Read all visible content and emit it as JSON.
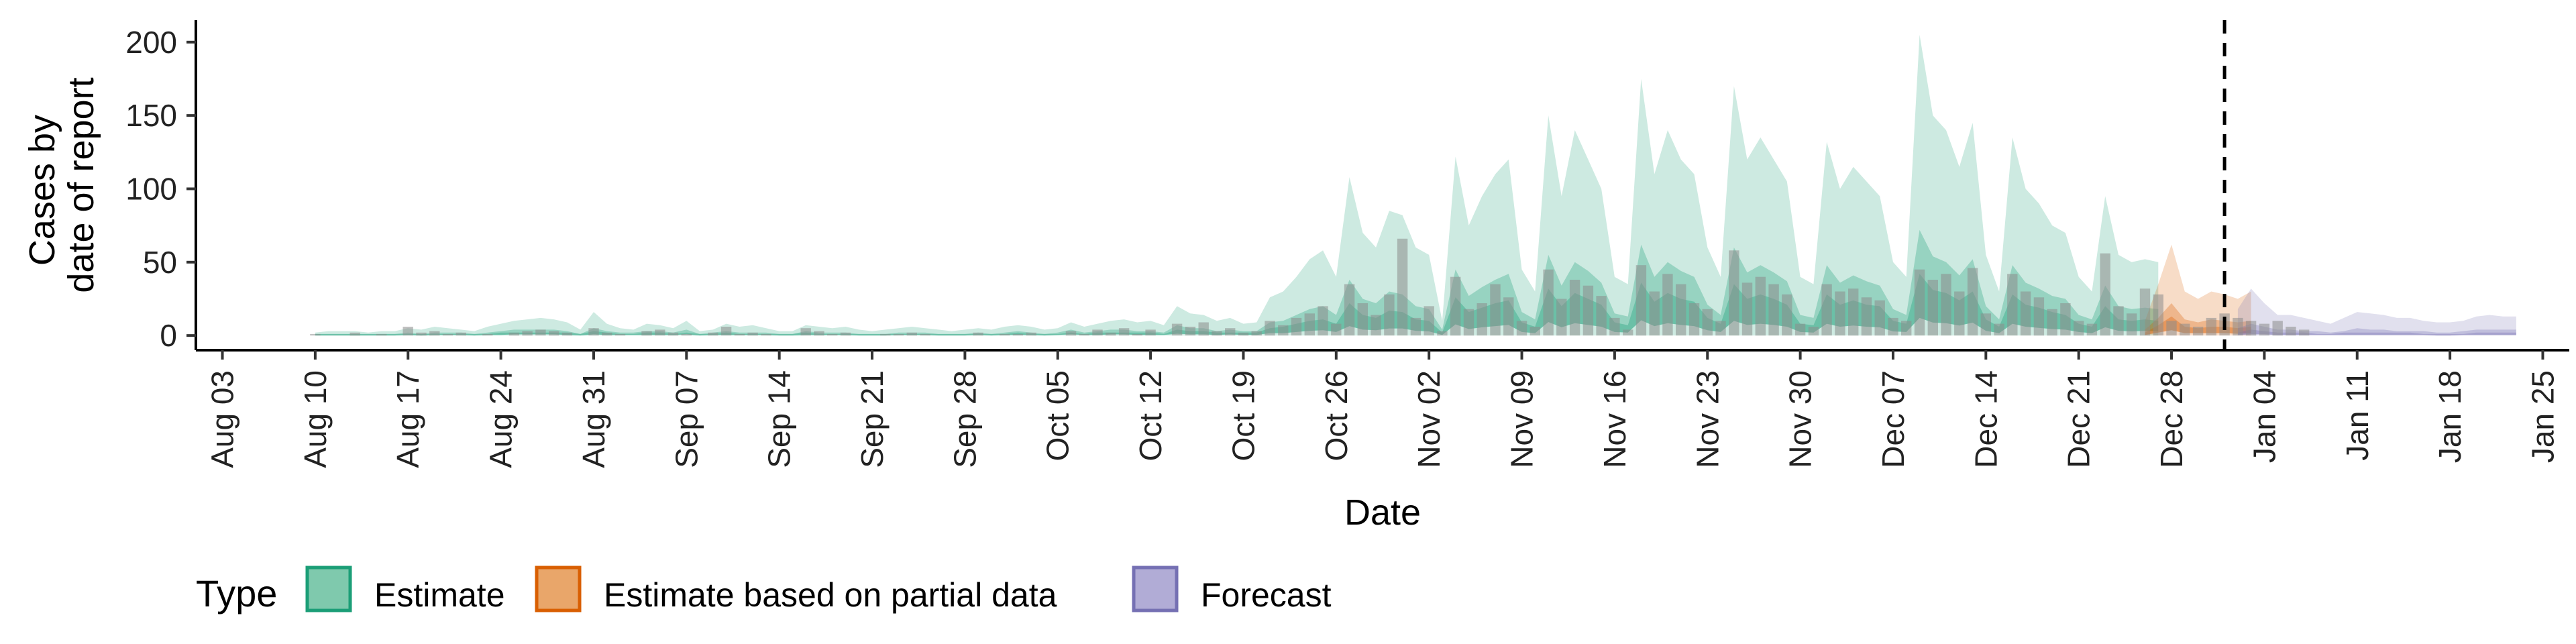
{
  "chart_data": {
    "type": "area",
    "xlabel": "Date",
    "ylabel_lines": [
      "Cases by",
      "date of report"
    ],
    "x_tick_labels": [
      "Aug 03",
      "Aug 10",
      "Aug 17",
      "Aug 24",
      "Aug 31",
      "Sep 07",
      "Sep 14",
      "Sep 21",
      "Sep 28",
      "Oct 05",
      "Oct 12",
      "Oct 19",
      "Oct 26",
      "Nov 02",
      "Nov 09",
      "Nov 16",
      "Nov 23",
      "Nov 30",
      "Dec 07",
      "Dec 14",
      "Dec 21",
      "Dec 28",
      "Jan 04",
      "Jan 11",
      "Jan 18",
      "Jan 25"
    ],
    "x_tick_days": [
      0,
      7,
      14,
      21,
      28,
      35,
      42,
      49,
      56,
      63,
      70,
      77,
      84,
      91,
      98,
      105,
      112,
      119,
      126,
      133,
      140,
      147,
      154,
      161,
      168,
      175
    ],
    "y_ticks": [
      0,
      50,
      100,
      150,
      200
    ],
    "ylim": [
      -10,
      215
    ],
    "xlim_days": [
      -2,
      177
    ],
    "forecast_divider_day": 151,
    "legend": {
      "title": "Type",
      "position": "bottom-left",
      "items": [
        {
          "label": "Estimate",
          "fill": "#7fc9ad",
          "stroke": "#1b9e77"
        },
        {
          "label": "Estimate based on partial data",
          "fill": "#e9a66a",
          "stroke": "#d95f02"
        },
        {
          "label": "Forecast",
          "fill": "#b1acd6",
          "stroke": "#7570b3"
        }
      ]
    },
    "series": [
      {
        "name": "Estimate",
        "color": "#1b9e77",
        "start_day": 7,
        "upper90": [
          2,
          3,
          3,
          3,
          2,
          3,
          3,
          5,
          4,
          6,
          5,
          4,
          3,
          6,
          8,
          10,
          11,
          12,
          11,
          9,
          4,
          16,
          8,
          5,
          4,
          8,
          7,
          5,
          10,
          3,
          4,
          8,
          6,
          7,
          5,
          3,
          3,
          7,
          6,
          5,
          6,
          4,
          3,
          4,
          5,
          6,
          5,
          4,
          3,
          4,
          5,
          4,
          6,
          7,
          6,
          4,
          5,
          9,
          6,
          8,
          10,
          11,
          9,
          10,
          7,
          20,
          15,
          14,
          10,
          12,
          8,
          9,
          26,
          30,
          40,
          52,
          58,
          40,
          108,
          70,
          60,
          85,
          82,
          60,
          55,
          10,
          122,
          75,
          95,
          110,
          120,
          45,
          30,
          150,
          95,
          140,
          120,
          100,
          40,
          35,
          175,
          110,
          140,
          120,
          110,
          60,
          40,
          170,
          120,
          135,
          120,
          105,
          40,
          35,
          132,
          100,
          115,
          105,
          95,
          50,
          40,
          205,
          150,
          140,
          115,
          145,
          55,
          30,
          135,
          100,
          90,
          75,
          70,
          40,
          30,
          95,
          55,
          50,
          52,
          50
        ],
        "upper50": [
          1,
          1,
          1,
          1,
          1,
          1,
          1,
          2,
          1,
          2,
          2,
          2,
          1,
          2,
          3,
          4,
          4,
          4,
          4,
          3,
          1,
          5,
          3,
          2,
          2,
          3,
          3,
          2,
          4,
          1,
          2,
          3,
          2,
          2,
          2,
          1,
          1,
          3,
          2,
          2,
          2,
          1,
          1,
          1,
          2,
          2,
          2,
          1,
          1,
          1,
          2,
          1,
          2,
          3,
          2,
          1,
          2,
          4,
          2,
          3,
          4,
          4,
          3,
          3,
          2,
          7,
          5,
          5,
          3,
          4,
          3,
          3,
          9,
          10,
          14,
          18,
          20,
          14,
          38,
          25,
          22,
          30,
          28,
          20,
          18,
          4,
          45,
          27,
          33,
          38,
          42,
          16,
          11,
          55,
          34,
          50,
          44,
          36,
          15,
          13,
          62,
          40,
          50,
          44,
          40,
          21,
          14,
          60,
          43,
          48,
          43,
          37,
          14,
          12,
          48,
          36,
          41,
          37,
          34,
          18,
          14,
          72,
          54,
          50,
          41,
          52,
          20,
          11,
          48,
          36,
          32,
          27,
          25,
          14,
          11,
          34,
          20,
          18,
          19,
          18
        ],
        "upper20": [
          1,
          1,
          1,
          1,
          1,
          1,
          1,
          1,
          1,
          1,
          1,
          1,
          1,
          1,
          2,
          2,
          2,
          2,
          2,
          2,
          1,
          3,
          2,
          1,
          1,
          2,
          2,
          1,
          2,
          1,
          1,
          2,
          1,
          1,
          1,
          1,
          1,
          2,
          1,
          1,
          1,
          1,
          1,
          1,
          1,
          1,
          1,
          1,
          1,
          1,
          1,
          1,
          1,
          2,
          1,
          1,
          1,
          2,
          1,
          2,
          2,
          2,
          2,
          2,
          1,
          4,
          3,
          3,
          2,
          2,
          2,
          2,
          5,
          6,
          8,
          10,
          11,
          8,
          22,
          14,
          12,
          17,
          16,
          11,
          10,
          2,
          26,
          16,
          19,
          22,
          24,
          9,
          6,
          32,
          20,
          29,
          25,
          21,
          9,
          7,
          36,
          23,
          29,
          25,
          23,
          12,
          8,
          35,
          25,
          28,
          25,
          21,
          8,
          7,
          28,
          21,
          24,
          21,
          20,
          10,
          8,
          42,
          31,
          29,
          24,
          30,
          11,
          6,
          28,
          21,
          19,
          16,
          14,
          8,
          6,
          20,
          11,
          10,
          11,
          10
        ],
        "median": [
          0,
          0,
          0,
          0,
          0,
          0,
          0,
          1,
          0,
          1,
          1,
          1,
          0,
          1,
          1,
          2,
          2,
          2,
          2,
          1,
          0,
          2,
          1,
          1,
          1,
          1,
          1,
          1,
          2,
          0,
          1,
          1,
          1,
          1,
          1,
          0,
          0,
          1,
          1,
          1,
          1,
          0,
          0,
          0,
          1,
          1,
          1,
          0,
          0,
          0,
          1,
          0,
          1,
          1,
          1,
          0,
          1,
          2,
          1,
          1,
          2,
          2,
          1,
          1,
          1,
          3,
          2,
          2,
          1,
          2,
          1,
          1,
          4,
          4,
          6,
          8,
          9,
          6,
          16,
          10,
          9,
          12,
          12,
          8,
          7,
          1,
          19,
          11,
          14,
          16,
          18,
          6,
          4,
          23,
          14,
          21,
          18,
          15,
          6,
          5,
          26,
          16,
          21,
          18,
          16,
          9,
          6,
          25,
          18,
          20,
          18,
          15,
          6,
          5,
          20,
          15,
          17,
          15,
          14,
          7,
          6,
          30,
          22,
          21,
          17,
          22,
          8,
          4,
          20,
          15,
          13,
          11,
          10,
          6,
          4,
          14,
          8,
          7,
          8,
          7
        ]
      },
      {
        "name": "Estimate based on partial data",
        "color": "#d95f02",
        "start_day": 145,
        "upper90": [
          10,
          35,
          62,
          30,
          25,
          30,
          28,
          25,
          30
        ],
        "upper50": [
          4,
          12,
          22,
          11,
          9,
          11,
          10,
          9,
          10
        ],
        "upper20": [
          2,
          7,
          13,
          6,
          5,
          6,
          6,
          5,
          6
        ],
        "median": [
          1,
          5,
          9,
          4,
          4,
          4,
          4,
          3,
          4
        ]
      },
      {
        "name": "Forecast",
        "color": "#7570b3",
        "start_day": 152,
        "upper90": [
          18,
          32,
          22,
          14,
          14,
          12,
          10,
          8,
          12,
          16,
          15,
          14,
          12,
          12,
          10,
          9,
          9,
          10,
          13,
          14,
          13,
          13
        ],
        "upper50": [
          5,
          8,
          6,
          4,
          4,
          3,
          3,
          2,
          3,
          5,
          4,
          4,
          3,
          3,
          3,
          2,
          2,
          3,
          4,
          4,
          4,
          4
        ],
        "upper20": [
          2,
          4,
          3,
          2,
          2,
          2,
          1,
          1,
          2,
          2,
          2,
          2,
          2,
          2,
          1,
          1,
          1,
          1,
          2,
          2,
          2,
          2
        ],
        "median": [
          1,
          2,
          2,
          1,
          1,
          1,
          1,
          1,
          1,
          1,
          1,
          1,
          1,
          1,
          1,
          0,
          0,
          1,
          1,
          1,
          1,
          1
        ]
      }
    ],
    "reported_cases": {
      "start_day": 7,
      "values": [
        1,
        0,
        0,
        2,
        0,
        1,
        0,
        6,
        2,
        3,
        1,
        2,
        0,
        1,
        0,
        2,
        3,
        4,
        3,
        2,
        0,
        5,
        2,
        1,
        0,
        3,
        4,
        2,
        1,
        0,
        2,
        6,
        1,
        2,
        1,
        0,
        0,
        5,
        3,
        1,
        2,
        0,
        0,
        1,
        1,
        2,
        1,
        0,
        0,
        0,
        2,
        0,
        1,
        1,
        2,
        0,
        0,
        3,
        1,
        4,
        2,
        5,
        1,
        4,
        0,
        8,
        6,
        9,
        3,
        5,
        2,
        3,
        10,
        7,
        12,
        15,
        20,
        8,
        35,
        22,
        14,
        28,
        66,
        12,
        20,
        3,
        40,
        18,
        22,
        35,
        26,
        10,
        6,
        45,
        25,
        38,
        34,
        27,
        12,
        4,
        48,
        30,
        42,
        35,
        22,
        18,
        10,
        58,
        36,
        40,
        35,
        28,
        8,
        6,
        35,
        30,
        32,
        26,
        24,
        12,
        10,
        45,
        38,
        42,
        30,
        46,
        15,
        8,
        42,
        30,
        26,
        18,
        22,
        10,
        8,
        56,
        20,
        15,
        32,
        28,
        10,
        8,
        6,
        12,
        15,
        12,
        10,
        8,
        10,
        6,
        4
      ]
    }
  }
}
